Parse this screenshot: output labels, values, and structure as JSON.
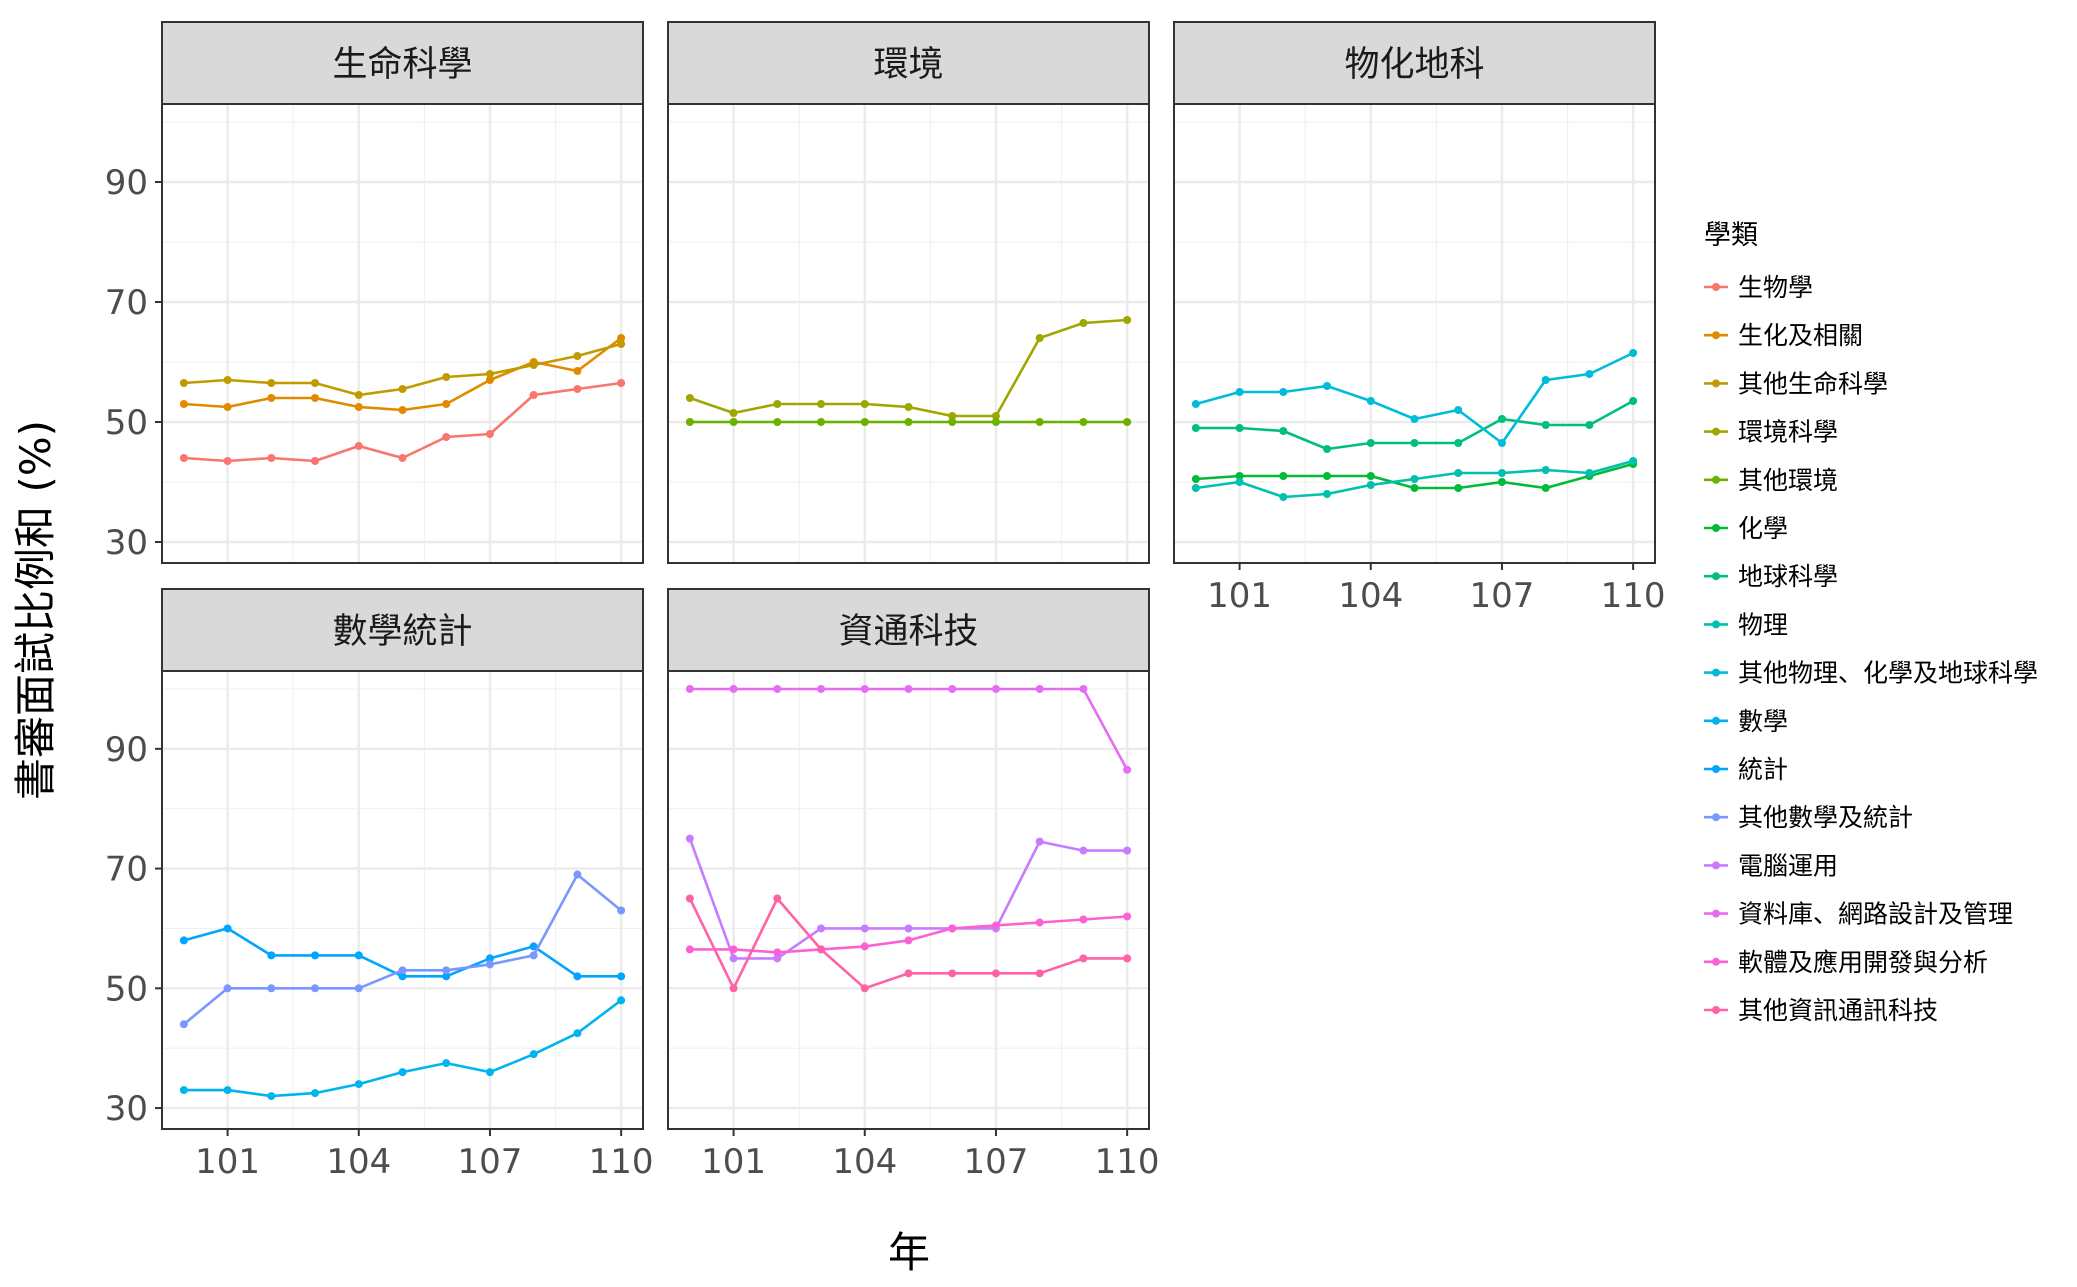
{
  "chart_data": {
    "type": "line",
    "xlabel": "年",
    "ylabel": "書審面試比例和 (%)",
    "x": [
      100,
      101,
      102,
      103,
      104,
      105,
      106,
      107,
      108,
      109,
      110
    ],
    "x_ticks": [
      "101",
      "104",
      "107",
      "110"
    ],
    "y_ticks": [
      "30",
      "50",
      "70",
      "90"
    ],
    "ylim": [
      26.5,
      103
    ],
    "grid": true,
    "legend": {
      "title": "學類",
      "placement": "right",
      "entries": [
        {
          "name": "生物學",
          "color": "#F8766D"
        },
        {
          "name": "生化及相關",
          "color": "#E18A00"
        },
        {
          "name": "其他生命科學",
          "color": "#C09B00"
        },
        {
          "name": "環境科學",
          "color": "#9EA700"
        },
        {
          "name": "其他環境",
          "color": "#6BB100"
        },
        {
          "name": "化學",
          "color": "#00BA38"
        },
        {
          "name": "地球科學",
          "color": "#00BF7D"
        },
        {
          "name": "物理",
          "color": "#00C0AF"
        },
        {
          "name": "其他物理、化學及地球科學",
          "color": "#00BCD8"
        },
        {
          "name": "數學",
          "color": "#00B4EF"
        },
        {
          "name": "統計",
          "color": "#00A5FF"
        },
        {
          "name": "其他數學及統計",
          "color": "#7997FF"
        },
        {
          "name": "電腦運用",
          "color": "#C77CFF"
        },
        {
          "name": "資料庫、網路設計及管理",
          "color": "#E76BF3"
        },
        {
          "name": "軟體及應用開發與分析",
          "color": "#FA62D4"
        },
        {
          "name": "其他資訊通訊科技",
          "color": "#FF62A5"
        }
      ]
    },
    "panels": [
      {
        "title": "生命科學",
        "series": [
          {
            "name": "生物學",
            "color": "#F8766D",
            "values": [
              44,
              43.5,
              44,
              43.5,
              46,
              44,
              47.5,
              48,
              54.5,
              55.5,
              56.5
            ]
          },
          {
            "name": "生化及相關",
            "color": "#E18A00",
            "values": [
              53,
              52.5,
              54,
              54,
              52.5,
              52,
              53,
              57,
              60,
              58.5,
              64
            ]
          },
          {
            "name": "其他生命科學",
            "color": "#C09B00",
            "values": [
              56.5,
              57,
              56.5,
              56.5,
              54.5,
              55.5,
              57.5,
              58,
              59.5,
              61,
              63
            ]
          }
        ]
      },
      {
        "title": "環境",
        "series": [
          {
            "name": "環境科學",
            "color": "#9EA700",
            "values": [
              54,
              51.5,
              53,
              53,
              53,
              52.5,
              51,
              51,
              64,
              66.5,
              67
            ]
          },
          {
            "name": "其他環境",
            "color": "#6BB100",
            "values": [
              50,
              50,
              50,
              50,
              50,
              50,
              50,
              50,
              50,
              50,
              50
            ]
          }
        ]
      },
      {
        "title": "物化地科",
        "series": [
          {
            "name": "化學",
            "color": "#00BA38",
            "values": [
              40.5,
              41,
              41,
              41,
              41,
              39,
              39,
              40,
              39,
              41,
              43
            ]
          },
          {
            "name": "地球科學",
            "color": "#00BF7D",
            "values": [
              49,
              49,
              48.5,
              45.5,
              46.5,
              46.5,
              46.5,
              50.5,
              49.5,
              49.5,
              53.5
            ]
          },
          {
            "name": "物理",
            "color": "#00C0AF",
            "values": [
              39,
              40,
              37.5,
              38,
              39.5,
              40.5,
              41.5,
              41.5,
              42,
              41.5,
              43.5
            ]
          },
          {
            "name": "其他物理、化學及地球科學",
            "color": "#00BCD8",
            "values": [
              53,
              55,
              55,
              56,
              53.5,
              50.5,
              52,
              46.5,
              57,
              58,
              61.5
            ]
          }
        ]
      },
      {
        "title": "數學統計",
        "series": [
          {
            "name": "數學",
            "color": "#00B4EF",
            "values": [
              33,
              33,
              32,
              32.5,
              34,
              36,
              37.5,
              36,
              39,
              42.5,
              48
            ]
          },
          {
            "name": "統計",
            "color": "#00A5FF",
            "values": [
              58,
              60,
              55.5,
              55.5,
              55.5,
              52,
              52,
              55,
              57,
              52,
              52
            ]
          },
          {
            "name": "其他數學及統計",
            "color": "#7997FF",
            "values": [
              44,
              50,
              50,
              50,
              50,
              53,
              53,
              54,
              55.5,
              69,
              63
            ]
          }
        ]
      },
      {
        "title": "資通科技",
        "series": [
          {
            "name": "電腦運用",
            "color": "#C77CFF",
            "values": [
              75,
              55,
              55,
              60,
              60,
              60,
              60,
              60,
              74.5,
              73,
              73
            ]
          },
          {
            "name": "資料庫、網路設計及管理",
            "color": "#E76BF3",
            "values": [
              100,
              100,
              100,
              100,
              100,
              100,
              100,
              100,
              100,
              100,
              86.5
            ]
          },
          {
            "name": "軟體及應用開發與分析",
            "color": "#FA62D4",
            "values": [
              56.5,
              56.5,
              56,
              56.5,
              57,
              58,
              60,
              60.5,
              61,
              61.5,
              62
            ]
          },
          {
            "name": "其他資訊通訊科技",
            "color": "#FF62A5",
            "values": [
              65,
              50,
              65,
              56.5,
              50,
              52.5,
              52.5,
              52.5,
              52.5,
              55,
              55
            ]
          }
        ]
      }
    ]
  }
}
